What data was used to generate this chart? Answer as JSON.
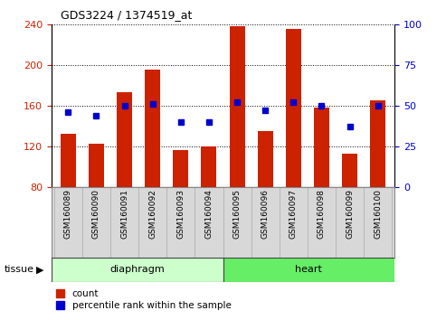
{
  "title": "GDS3224 / 1374519_at",
  "samples": [
    "GSM160089",
    "GSM160090",
    "GSM160091",
    "GSM160092",
    "GSM160093",
    "GSM160094",
    "GSM160095",
    "GSM160096",
    "GSM160097",
    "GSM160098",
    "GSM160099",
    "GSM160100"
  ],
  "count_values": [
    132,
    123,
    173,
    195,
    116,
    120,
    238,
    135,
    235,
    158,
    113,
    165
  ],
  "percentile_values": [
    46,
    44,
    50,
    51,
    40,
    40,
    52,
    47,
    52,
    50,
    37,
    50
  ],
  "ylim_left": [
    80,
    240
  ],
  "ylim_right": [
    0,
    100
  ],
  "yticks_left": [
    80,
    120,
    160,
    200,
    240
  ],
  "yticks_right": [
    0,
    25,
    50,
    75,
    100
  ],
  "bar_color": "#cc2200",
  "dot_color": "#0000cc",
  "xtick_bg": "#d8d8d8",
  "diaphragm_color": "#ccffcc",
  "heart_color": "#66ee66",
  "bg_color": "#ffffff",
  "tick_label_color_left": "#cc2200",
  "tick_label_color_right": "#0000cc",
  "n_diaphragm": 6,
  "n_heart": 6
}
